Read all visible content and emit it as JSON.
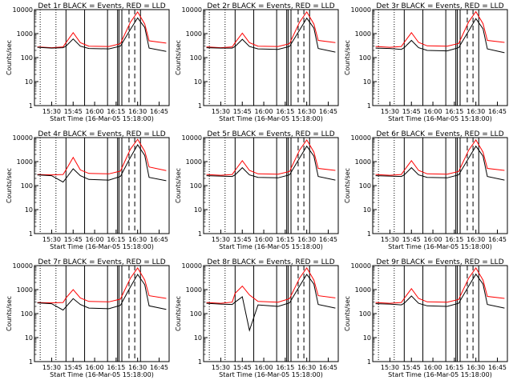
{
  "figure": {
    "xlabel": "Start Time (16-Mar-05 15:18:00)",
    "ylabel": "Counts/sec",
    "series_colors": {
      "events": "#000000",
      "lld": "#ff0000"
    },
    "x_ticks": [
      "15:30",
      "15:45",
      "16:00",
      "16:15",
      "16:30",
      "16:45"
    ],
    "y_ticks": [
      "1",
      "10",
      "100",
      "1000",
      "10000"
    ]
  },
  "chart_data": [
    {
      "type": "line",
      "title": "Det 1r  BLACK = Events, RED = LLD",
      "panel": "1r",
      "x": [
        "15:20",
        "15:30",
        "15:38",
        "15:40",
        "15:45",
        "15:50",
        "15:56",
        "16:10",
        "16:18",
        "16:25",
        "16:30",
        "16:35",
        "16:38",
        "16:50"
      ],
      "series": [
        {
          "values": [
            280,
            260,
            280,
            420,
            1100,
            420,
            300,
            290,
            380,
            3000,
            8000,
            2500,
            500,
            400
          ]
        },
        {
          "values": [
            270,
            250,
            260,
            300,
            600,
            300,
            240,
            230,
            300,
            1500,
            4500,
            1800,
            250,
            180
          ]
        }
      ],
      "ylim": [
        1,
        10000
      ],
      "yscale": "log"
    },
    {
      "type": "line",
      "title": "Det 2r  BLACK = Events, RED = LLD",
      "panel": "2r",
      "x": [
        "15:20",
        "15:30",
        "15:38",
        "15:40",
        "15:45",
        "15:50",
        "15:56",
        "16:10",
        "16:18",
        "16:25",
        "16:30",
        "16:35",
        "16:38",
        "16:50"
      ],
      "series": [
        {
          "values": [
            280,
            260,
            280,
            420,
            1050,
            420,
            300,
            290,
            380,
            3000,
            8000,
            2500,
            520,
            420
          ]
        },
        {
          "values": [
            260,
            250,
            250,
            290,
            580,
            290,
            230,
            220,
            290,
            1400,
            4400,
            1700,
            240,
            170
          ]
        }
      ],
      "ylim": [
        1,
        10000
      ],
      "yscale": "log"
    },
    {
      "type": "line",
      "title": "Det 3r  BLACK = Events, RED = LLD",
      "panel": "3r",
      "x": [
        "15:20",
        "15:30",
        "15:38",
        "15:40",
        "15:45",
        "15:50",
        "15:56",
        "16:10",
        "16:18",
        "16:25",
        "16:30",
        "16:35",
        "16:38",
        "16:50"
      ],
      "series": [
        {
          "values": [
            290,
            270,
            290,
            430,
            1100,
            430,
            310,
            300,
            390,
            3100,
            8200,
            2600,
            520,
            430
          ]
        },
        {
          "values": [
            250,
            240,
            220,
            260,
            520,
            260,
            200,
            190,
            260,
            1300,
            4200,
            1600,
            230,
            160
          ]
        }
      ],
      "ylim": [
        1,
        10000
      ],
      "yscale": "log"
    },
    {
      "type": "line",
      "title": "Det 4r  BLACK = Events, RED = LLD",
      "panel": "4r",
      "x": [
        "15:20",
        "15:30",
        "15:38",
        "15:40",
        "15:45",
        "15:50",
        "15:56",
        "16:10",
        "16:18",
        "16:25",
        "16:30",
        "16:35",
        "16:38",
        "16:50"
      ],
      "series": [
        {
          "values": [
            290,
            280,
            290,
            450,
            1500,
            450,
            320,
            310,
            400,
            3300,
            8500,
            2700,
            600,
            420
          ]
        },
        {
          "values": [
            280,
            260,
            140,
            200,
            500,
            260,
            180,
            170,
            240,
            1500,
            5000,
            1800,
            220,
            160
          ]
        }
      ],
      "ylim": [
        1,
        10000
      ],
      "yscale": "log"
    },
    {
      "type": "line",
      "title": "Det 5r  BLACK = Events, RED = LLD",
      "panel": "5r",
      "x": [
        "15:20",
        "15:30",
        "15:38",
        "15:40",
        "15:45",
        "15:50",
        "15:56",
        "16:10",
        "16:18",
        "16:25",
        "16:30",
        "16:35",
        "16:38",
        "16:50"
      ],
      "series": [
        {
          "values": [
            290,
            270,
            290,
            430,
            1100,
            430,
            310,
            300,
            390,
            3000,
            8000,
            2500,
            520,
            430
          ]
        },
        {
          "values": [
            260,
            250,
            240,
            280,
            560,
            280,
            220,
            210,
            280,
            1400,
            4400,
            1700,
            240,
            170
          ]
        }
      ],
      "ylim": [
        1,
        10000
      ],
      "yscale": "log"
    },
    {
      "type": "line",
      "title": "Det 6r  BLACK = Events, RED = LLD",
      "panel": "6r",
      "x": [
        "15:20",
        "15:30",
        "15:38",
        "15:40",
        "15:45",
        "15:50",
        "15:56",
        "16:10",
        "16:18",
        "16:25",
        "16:30",
        "16:35",
        "16:38",
        "16:50"
      ],
      "series": [
        {
          "values": [
            290,
            270,
            290,
            430,
            1100,
            430,
            310,
            300,
            390,
            3000,
            8000,
            2500,
            520,
            430
          ]
        },
        {
          "values": [
            260,
            250,
            240,
            280,
            560,
            280,
            220,
            210,
            280,
            1400,
            4400,
            1700,
            240,
            170
          ]
        }
      ],
      "ylim": [
        1,
        10000
      ],
      "yscale": "log"
    },
    {
      "type": "line",
      "title": "Det 7r  BLACK = Events, RED = LLD",
      "panel": "7r",
      "x": [
        "15:20",
        "15:30",
        "15:38",
        "15:40",
        "15:45",
        "15:50",
        "15:56",
        "16:10",
        "16:18",
        "16:25",
        "16:30",
        "16:35",
        "16:38",
        "16:50"
      ],
      "series": [
        {
          "values": [
            290,
            280,
            290,
            450,
            1000,
            450,
            320,
            310,
            400,
            3000,
            8000,
            2500,
            560,
            430
          ]
        },
        {
          "values": [
            280,
            260,
            140,
            190,
            420,
            240,
            170,
            160,
            220,
            1300,
            4300,
            1600,
            210,
            150
          ]
        }
      ],
      "ylim": [
        1,
        10000
      ],
      "yscale": "log"
    },
    {
      "type": "line",
      "title": "Det 8r  BLACK = Events, RED = LLD",
      "panel": "8r",
      "x": [
        "15:20",
        "15:30",
        "15:38",
        "15:40",
        "15:45",
        "15:50",
        "15:56",
        "16:10",
        "16:18",
        "16:25",
        "16:30",
        "16:35",
        "16:38",
        "16:50"
      ],
      "series": [
        {
          "values": [
            290,
            270,
            300,
            700,
            1400,
            600,
            320,
            300,
            420,
            3000,
            8000,
            2500,
            560,
            450
          ]
        },
        {
          "values": [
            270,
            250,
            240,
            300,
            500,
            20,
            230,
            200,
            280,
            1400,
            4300,
            1700,
            240,
            170
          ]
        }
      ],
      "ylim": [
        1,
        10000
      ],
      "yscale": "log"
    },
    {
      "type": "line",
      "title": "Det 9r  BLACK = Events, RED = LLD",
      "panel": "9r",
      "x": [
        "15:20",
        "15:30",
        "15:38",
        "15:40",
        "15:45",
        "15:50",
        "15:56",
        "16:10",
        "16:18",
        "16:25",
        "16:30",
        "16:35",
        "16:38",
        "16:50"
      ],
      "series": [
        {
          "values": [
            290,
            270,
            290,
            430,
            1100,
            430,
            310,
            300,
            390,
            3000,
            8000,
            2500,
            520,
            430
          ]
        },
        {
          "values": [
            260,
            250,
            230,
            270,
            540,
            270,
            210,
            200,
            270,
            1400,
            4400,
            1700,
            240,
            170
          ]
        }
      ],
      "ylim": [
        1,
        10000
      ],
      "yscale": "log"
    }
  ]
}
